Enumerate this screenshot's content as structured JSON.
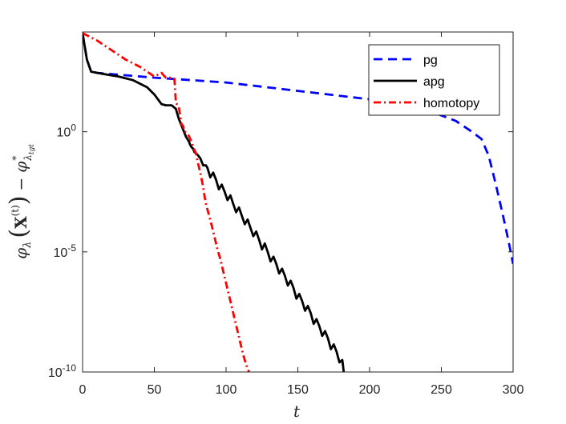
{
  "chart_data": {
    "type": "line",
    "xlabel": "t",
    "ylabel": {
      "phi": "φ",
      "lambda": "λ",
      "x_bold": "X",
      "superscript": "(t)",
      "star": "*",
      "lambda_sub": "λ",
      "tgt": "tgt",
      "minus": "−"
    },
    "xlim": [
      0,
      300
    ],
    "ylim_log10": [
      -10,
      4.15
    ],
    "yscale": "log",
    "x_ticks": [
      {
        "value": 0,
        "label": "0"
      },
      {
        "value": 50,
        "label": "50"
      },
      {
        "value": 100,
        "label": "100"
      },
      {
        "value": 150,
        "label": "150"
      },
      {
        "value": 200,
        "label": "200"
      },
      {
        "value": 250,
        "label": "250"
      },
      {
        "value": 300,
        "label": "300"
      }
    ],
    "y_ticks": [
      {
        "exp": 0,
        "base": "10",
        "sup": "0"
      },
      {
        "exp": -5,
        "base": "10",
        "sup": "-5"
      },
      {
        "exp": -10,
        "base": "10",
        "sup": "-10"
      }
    ],
    "grid": false,
    "legend_position": "top-right",
    "series": [
      {
        "name": "pg",
        "color": "#0000ff",
        "style": "dashed",
        "points_log10": [
          [
            0,
            4.1
          ],
          [
            3,
            3.0
          ],
          [
            6,
            2.5
          ],
          [
            10,
            2.45
          ],
          [
            50,
            2.25
          ],
          [
            100,
            2.05
          ],
          [
            150,
            1.7
          ],
          [
            200,
            1.35
          ],
          [
            240,
            0.9
          ],
          [
            260,
            0.45
          ],
          [
            270,
            0.05
          ],
          [
            278,
            -0.3
          ],
          [
            283,
            -1.0
          ],
          [
            288,
            -2.2
          ],
          [
            293,
            -3.5
          ],
          [
            297,
            -4.6
          ],
          [
            300,
            -5.5
          ]
        ]
      },
      {
        "name": "apg",
        "color": "#000000",
        "style": "solid",
        "points_log10": [
          [
            0,
            4.1
          ],
          [
            3,
            3.0
          ],
          [
            6,
            2.5
          ],
          [
            15,
            2.4
          ],
          [
            25,
            2.3
          ],
          [
            35,
            2.15
          ],
          [
            45,
            1.85
          ],
          [
            50,
            1.55
          ],
          [
            55,
            1.15
          ],
          [
            58,
            1.1
          ],
          [
            62,
            1.1
          ],
          [
            65,
            0.95
          ],
          [
            67,
            0.55
          ],
          [
            70,
            0.1
          ],
          [
            72,
            -0.2
          ],
          [
            74,
            -0.4
          ],
          [
            75,
            -0.55
          ],
          [
            76,
            -0.65
          ],
          [
            77,
            -0.7
          ],
          [
            78,
            -0.85
          ],
          [
            80,
            -0.95
          ],
          [
            82,
            -1.1
          ],
          [
            84,
            -1.4
          ],
          [
            86,
            -1.4
          ],
          [
            87,
            -1.5
          ],
          [
            89,
            -1.9
          ],
          [
            91,
            -1.7
          ],
          [
            93,
            -2.0
          ],
          [
            95,
            -2.4
          ],
          [
            97,
            -2.2
          ],
          [
            99,
            -2.5
          ],
          [
            101,
            -2.85
          ],
          [
            103,
            -2.65
          ],
          [
            105,
            -3.0
          ],
          [
            107,
            -3.35
          ],
          [
            109,
            -3.15
          ],
          [
            111,
            -3.5
          ],
          [
            113,
            -3.85
          ],
          [
            115,
            -3.65
          ],
          [
            117,
            -4.0
          ],
          [
            119,
            -4.35
          ],
          [
            121,
            -4.15
          ],
          [
            123,
            -4.5
          ],
          [
            125,
            -4.9
          ],
          [
            127,
            -4.65
          ],
          [
            129,
            -5.0
          ],
          [
            131,
            -5.4
          ],
          [
            133,
            -5.2
          ],
          [
            135,
            -5.5
          ],
          [
            137,
            -5.9
          ],
          [
            139,
            -5.7
          ],
          [
            141,
            -6.0
          ],
          [
            143,
            -6.4
          ],
          [
            145,
            -6.2
          ],
          [
            147,
            -6.5
          ],
          [
            149,
            -6.95
          ],
          [
            151,
            -6.75
          ],
          [
            153,
            -7.05
          ],
          [
            155,
            -7.45
          ],
          [
            157,
            -7.25
          ],
          [
            159,
            -7.55
          ],
          [
            161,
            -8.0
          ],
          [
            163,
            -7.8
          ],
          [
            165,
            -8.1
          ],
          [
            167,
            -8.5
          ],
          [
            169,
            -8.3
          ],
          [
            171,
            -8.6
          ],
          [
            173,
            -9.05
          ],
          [
            175,
            -8.85
          ],
          [
            177,
            -9.15
          ],
          [
            179,
            -9.6
          ],
          [
            181,
            -9.5
          ],
          [
            182,
            -10.0
          ]
        ]
      },
      {
        "name": "homotopy",
        "color": "#ff0000",
        "style": "dashdot",
        "points_log10": [
          [
            0,
            4.1
          ],
          [
            5,
            3.95
          ],
          [
            10,
            3.8
          ],
          [
            15,
            3.6
          ],
          [
            20,
            3.4
          ],
          [
            25,
            3.2
          ],
          [
            30,
            3.0
          ],
          [
            35,
            2.85
          ],
          [
            40,
            2.7
          ],
          [
            45,
            2.5
          ],
          [
            50,
            2.3
          ],
          [
            55,
            2.45
          ],
          [
            58,
            2.25
          ],
          [
            63,
            2.25
          ],
          [
            64,
            2.2
          ],
          [
            65,
            1.2
          ],
          [
            67,
            1.05
          ],
          [
            69,
            0.3
          ],
          [
            70,
            0.25
          ],
          [
            71,
            0.0
          ],
          [
            73,
            -0.05
          ],
          [
            75,
            -0.3
          ],
          [
            77,
            -0.6
          ],
          [
            79,
            -0.9
          ],
          [
            80,
            -1.2
          ],
          [
            81,
            -1.45
          ],
          [
            82,
            -1.7
          ],
          [
            83,
            -2.0
          ],
          [
            84,
            -2.3
          ],
          [
            85,
            -2.7
          ],
          [
            86,
            -3.0
          ],
          [
            88,
            -3.45
          ],
          [
            90,
            -3.9
          ],
          [
            92,
            -4.4
          ],
          [
            94,
            -4.9
          ],
          [
            96,
            -5.3
          ],
          [
            98,
            -5.8
          ],
          [
            100,
            -6.3
          ],
          [
            102,
            -6.8
          ],
          [
            104,
            -7.3
          ],
          [
            106,
            -7.8
          ],
          [
            108,
            -8.3
          ],
          [
            110,
            -8.8
          ],
          [
            112,
            -9.3
          ],
          [
            114,
            -9.7
          ],
          [
            116,
            -10.0
          ]
        ]
      }
    ]
  }
}
